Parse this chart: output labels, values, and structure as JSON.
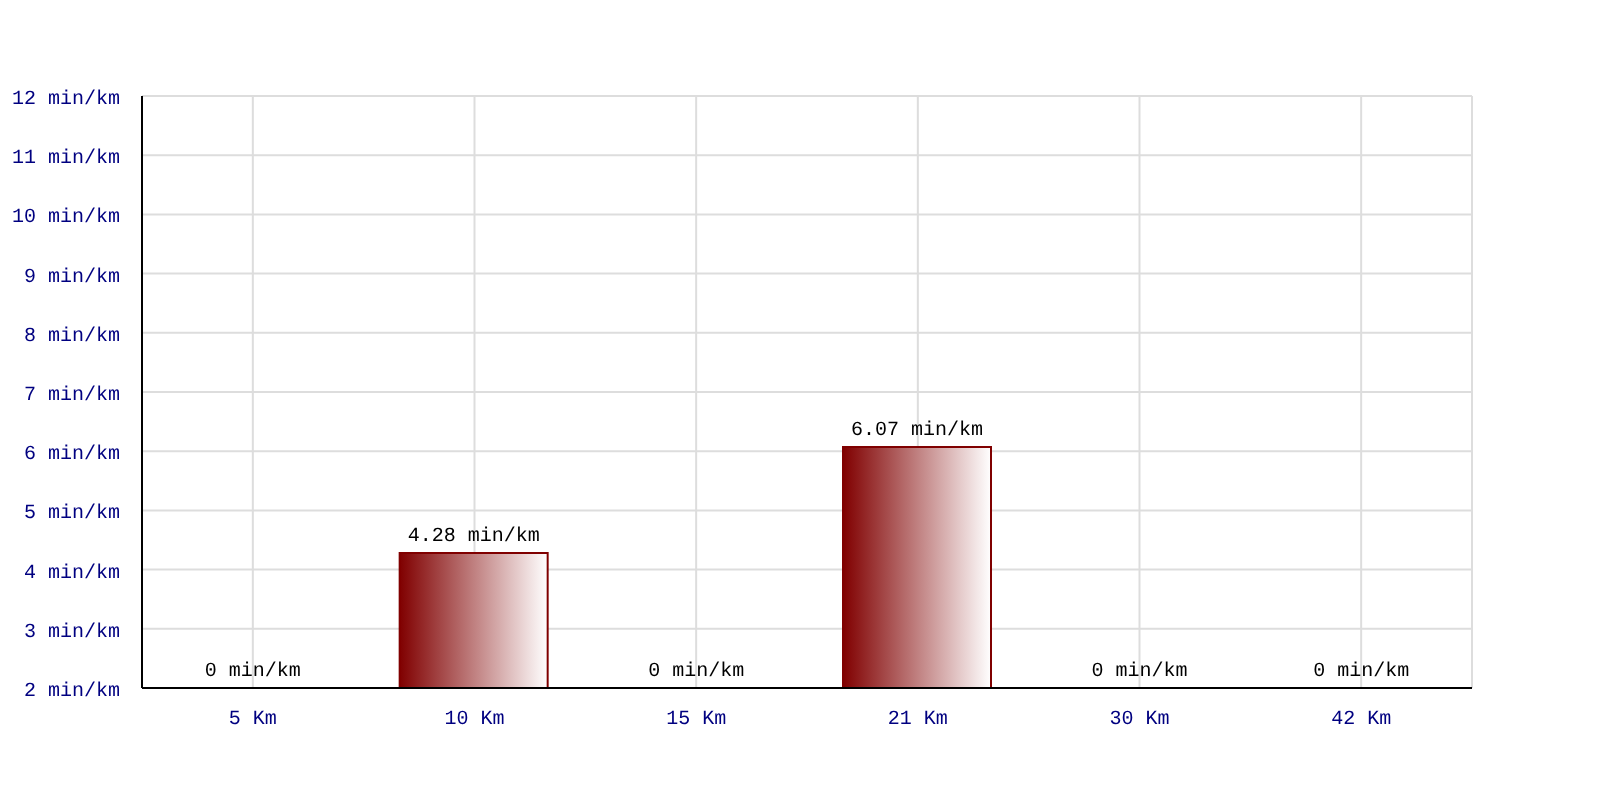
{
  "chart_data": {
    "type": "bar",
    "categories": [
      "5 Km",
      "10 Km",
      "15 Km",
      "21 Km",
      "30 Km",
      "42 Km"
    ],
    "values": [
      null,
      4.28,
      null,
      6.07,
      null,
      null
    ],
    "value_labels": [
      "0 min/km",
      "4.28 min/km",
      "0 min/km",
      "6.07 min/km",
      "0 min/km",
      "0 min/km"
    ],
    "color": "#800000",
    "ylim": [
      2,
      12
    ],
    "yticks": [
      {
        "value": 2,
        "label": "2 min/km"
      },
      {
        "value": 3,
        "label": "3 min/km"
      },
      {
        "value": 4,
        "label": "4 min/km"
      },
      {
        "value": 5,
        "label": "5 min/km"
      },
      {
        "value": 6,
        "label": "6 min/km"
      },
      {
        "value": 7,
        "label": "7 min/km"
      },
      {
        "value": 8,
        "label": "8 min/km"
      },
      {
        "value": 9,
        "label": "9 min/km"
      },
      {
        "value": 10,
        "label": "10 min/km"
      },
      {
        "value": 11,
        "label": "11 min/km"
      },
      {
        "value": 12,
        "label": "12 min/km"
      }
    ],
    "grid": true
  }
}
